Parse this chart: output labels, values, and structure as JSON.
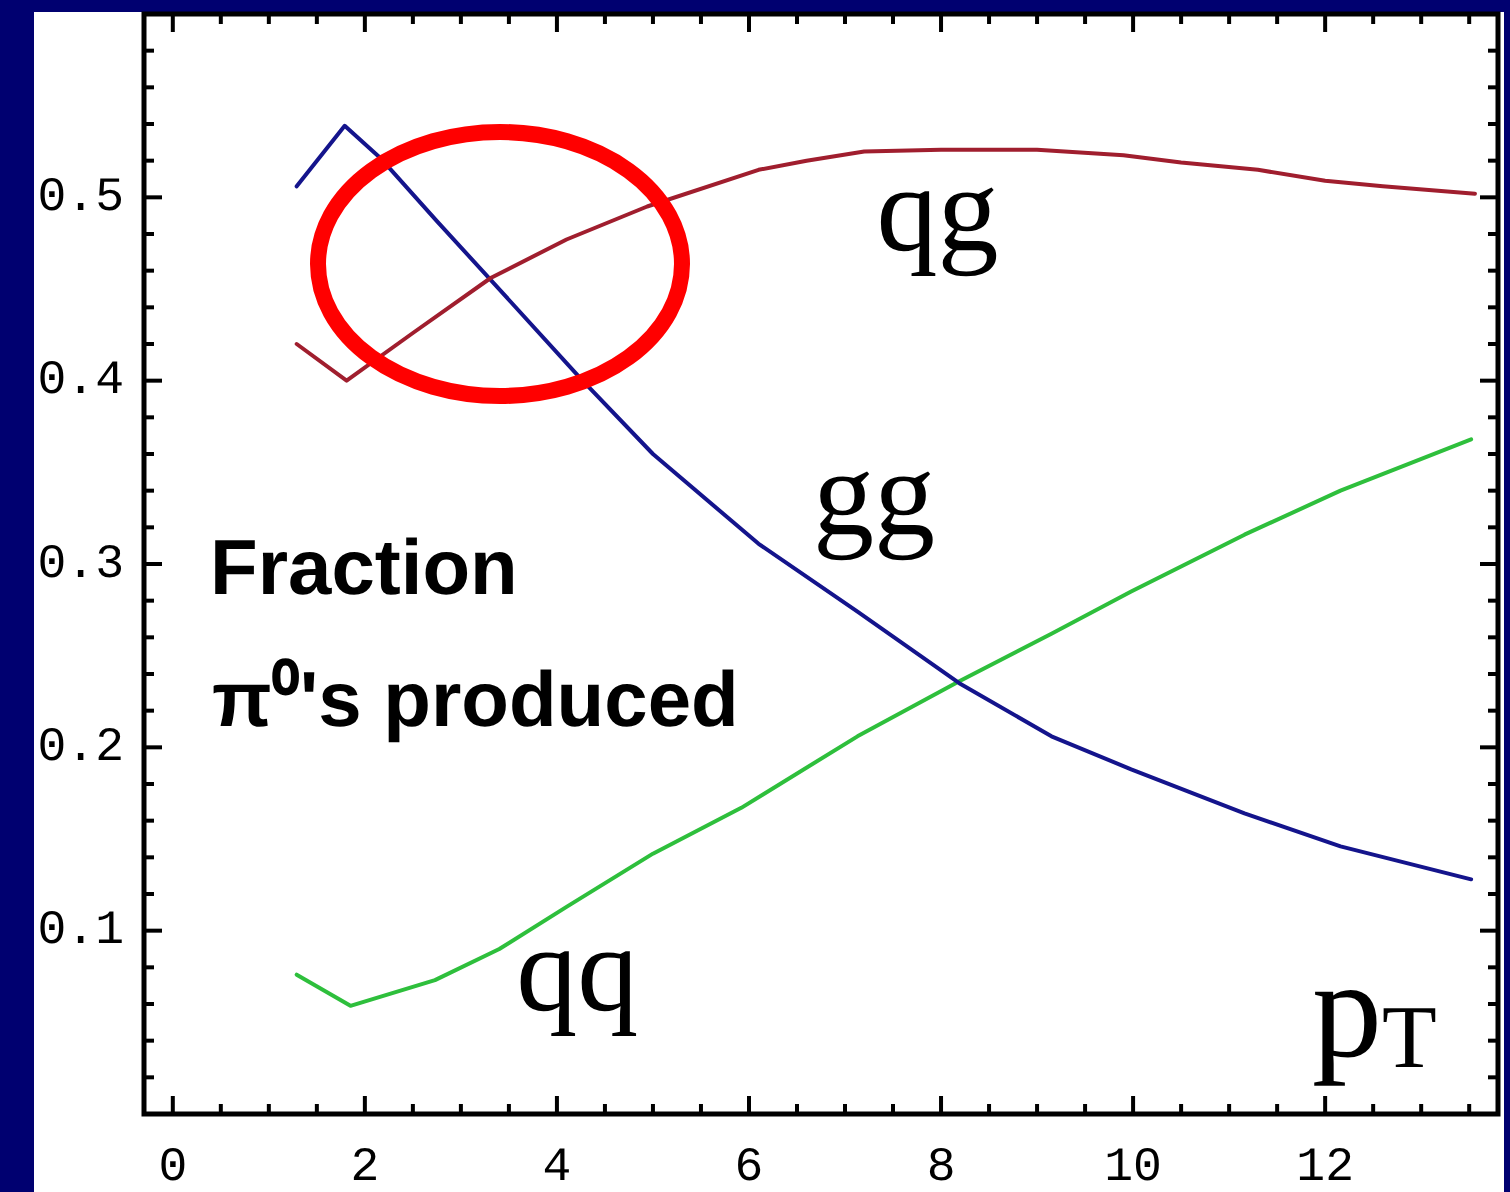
{
  "chart_data": {
    "type": "line",
    "annotations": [
      "Fraction",
      "π⁰'s produced"
    ],
    "xlabel": "p$_{T}$",
    "xlim": [
      -0.3,
      13.8
    ],
    "ylim": [
      0,
      0.6
    ],
    "xticks": [
      0,
      {
        "value": 0.5,
        "label": null
      },
      {
        "value": 1,
        "label": null
      },
      {
        "value": 1.5,
        "label": null
      },
      2,
      {
        "value": 2.5,
        "label": null
      },
      {
        "value": 3,
        "label": null
      },
      {
        "value": 3.5,
        "label": null
      },
      4,
      {
        "value": 4.5,
        "label": null
      },
      {
        "value": 5,
        "label": null
      },
      {
        "value": 5.5,
        "label": null
      },
      6,
      {
        "value": 6.5,
        "label": null
      },
      {
        "value": 7,
        "label": null
      },
      {
        "value": 7.5,
        "label": null
      },
      8,
      {
        "value": 8.5,
        "label": null
      },
      {
        "value": 9,
        "label": null
      },
      {
        "value": 9.5,
        "label": null
      },
      10,
      {
        "value": 10.5,
        "label": null
      },
      {
        "value": 11,
        "label": null
      },
      {
        "value": 11.5,
        "label": null
      },
      12,
      {
        "value": 12.5,
        "label": null
      },
      {
        "value": 13,
        "label": null
      },
      {
        "value": 13.5,
        "label": null
      }
    ],
    "yticks": [
      {
        "value": 0.02,
        "label": null
      },
      {
        "value": 0.04,
        "label": null
      },
      {
        "value": 0.06,
        "label": null
      },
      {
        "value": 0.08,
        "label": null
      },
      0.1,
      {
        "value": 0.12,
        "label": null
      },
      {
        "value": 0.14,
        "label": null
      },
      {
        "value": 0.16,
        "label": null
      },
      {
        "value": 0.18,
        "label": null
      },
      0.2,
      {
        "value": 0.22,
        "label": null
      },
      {
        "value": 0.24,
        "label": null
      },
      {
        "value": 0.26,
        "label": null
      },
      {
        "value": 0.28,
        "label": null
      },
      0.3,
      {
        "value": 0.32,
        "label": null
      },
      {
        "value": 0.34,
        "label": null
      },
      {
        "value": 0.36,
        "label": null
      },
      {
        "value": 0.38,
        "label": null
      },
      0.4,
      {
        "value": 0.42,
        "label": null
      },
      {
        "value": 0.44,
        "label": null
      },
      {
        "value": 0.46,
        "label": null
      },
      {
        "value": 0.48,
        "label": null
      },
      0.5,
      {
        "value": 0.52,
        "label": null
      },
      {
        "value": 0.54,
        "label": null
      },
      {
        "value": 0.56,
        "label": null
      },
      {
        "value": 0.58,
        "label": null
      }
    ],
    "marker": "none",
    "series": [
      {
        "name": "qg",
        "color": "#a01e2e",
        "x": [
          1.29,
          1.81,
          2.5,
          3.31,
          4.1,
          4.94,
          6.1,
          6.6,
          7.2,
          8,
          9,
          9.9,
          10.5,
          11.3,
          12,
          12.6,
          13.56
        ],
        "values": [
          0.42,
          0.4,
          0.426,
          0.456,
          0.477,
          0.495,
          0.515,
          0.52,
          0.525,
          0.526,
          0.526,
          0.523,
          0.519,
          0.515,
          0.509,
          0.506,
          0.502
        ]
      },
      {
        "name": "gg",
        "color": "#14148c",
        "x": [
          1.29,
          1.79,
          2.17,
          2.75,
          3.31,
          4.25,
          5,
          6.1,
          7.13,
          8.19,
          9.15,
          9.98,
          11.16,
          12.16,
          13.52
        ],
        "values": [
          0.506,
          0.539,
          0.521,
          0.487,
          0.455,
          0.401,
          0.36,
          0.311,
          0.274,
          0.235,
          0.206,
          0.188,
          0.164,
          0.146,
          0.128
        ]
      },
      {
        "name": "qq",
        "color": "#2ebf3c",
        "x": [
          1.29,
          1.85,
          2.73,
          3.4,
          4.1,
          5,
          5.92,
          7.13,
          8.19,
          9.15,
          9.98,
          11.16,
          12.16,
          13.52
        ],
        "values": [
          0.076,
          0.059,
          0.073,
          0.09,
          0.113,
          0.142,
          0.167,
          0.206,
          0.236,
          0.262,
          0.285,
          0.316,
          0.34,
          0.368
        ]
      }
    ]
  }
}
